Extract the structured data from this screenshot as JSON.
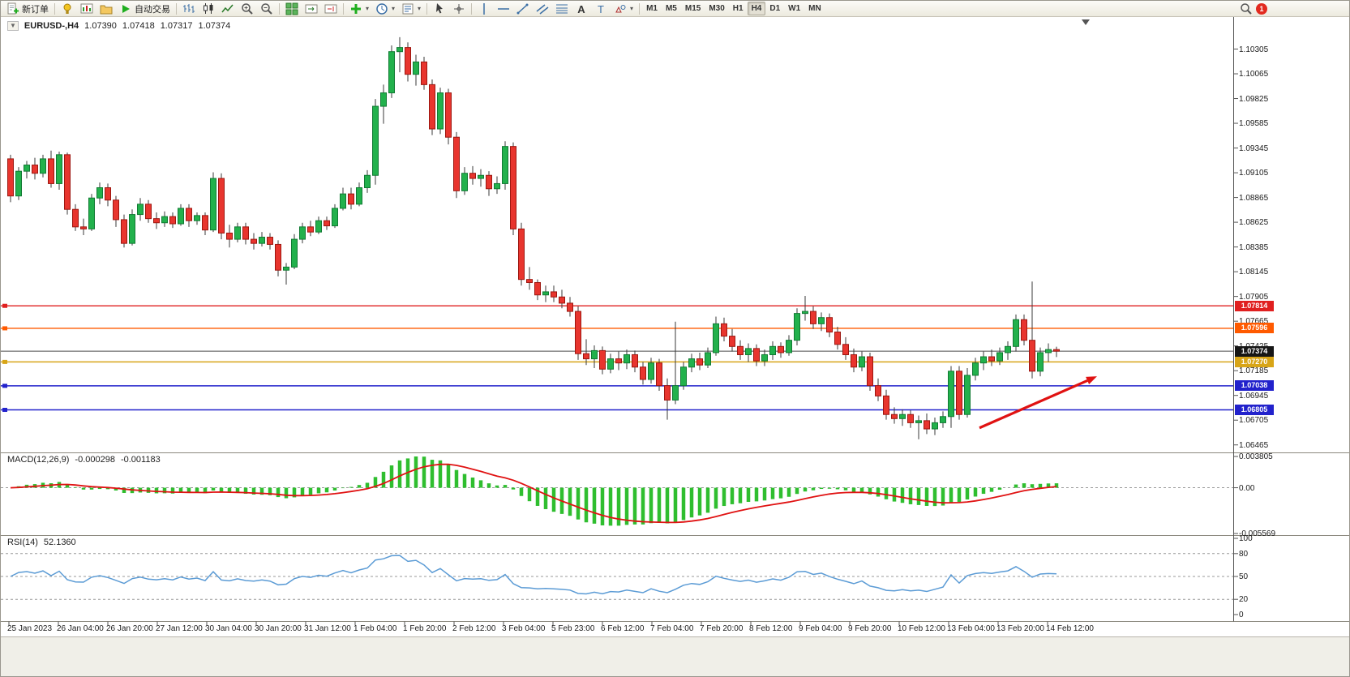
{
  "toolbar": {
    "new_order_label": "新订单",
    "autotrading_label": "自动交易",
    "left_icon_buttons": [
      "indicators",
      "new-chart",
      "profiles"
    ],
    "chart_type_buttons": [
      "bar-chart",
      "candle-chart",
      "line-chart"
    ],
    "zoom_buttons": [
      "zoom-in",
      "zoom-out"
    ],
    "window_buttons": [
      "tile-windows",
      "auto-scroll",
      "chart-shift"
    ],
    "insert_buttons": [
      "add-indicator",
      "periods",
      "templates"
    ],
    "cursor_buttons": [
      "cursor",
      "crosshair"
    ],
    "drawing_buttons": [
      "vline",
      "hline",
      "trendline",
      "channel",
      "fibonacci",
      "text",
      "label",
      "shapes"
    ],
    "timeframes": [
      "M1",
      "M5",
      "M15",
      "M30",
      "H1",
      "H4",
      "D1",
      "W1",
      "MN"
    ],
    "active_timeframe": "H4",
    "notification_count": "1"
  },
  "chart_header": {
    "symbol": "EURUSD-,H4",
    "open": "1.07390",
    "high": "1.07418",
    "low": "1.07317",
    "close": "1.07374"
  },
  "chart_data": {
    "type": "candlestick",
    "symbol": "EURUSD-",
    "period": "H4",
    "price_axis": {
      "max": 1.106,
      "min": 1.064,
      "labels": [
        "1.10305",
        "1.10065",
        "1.09825",
        "1.09585",
        "1.09345",
        "1.09105",
        "1.08865",
        "1.08625",
        "1.08385",
        "1.08145",
        "1.07905",
        "1.07665",
        "1.07425",
        "1.07185",
        "1.06945",
        "1.06705",
        "1.06465"
      ]
    },
    "time_axis": [
      "25 Jan 2023",
      "26 Jan 04:00",
      "26 Jan 20:00",
      "27 Jan 12:00",
      "30 Jan 04:00",
      "30 Jan 20:00",
      "31 Jan 12:00",
      "1 Feb 04:00",
      "1 Feb 20:00",
      "2 Feb 12:00",
      "3 Feb 04:00",
      "5 Feb 23:00",
      "6 Feb 12:00",
      "7 Feb 04:00",
      "7 Feb 20:00",
      "8 Feb 12:00",
      "9 Feb 04:00",
      "9 Feb 20:00",
      "10 Feb 12:00",
      "13 Feb 04:00",
      "13 Feb 20:00",
      "14 Feb 12:00"
    ],
    "colors": {
      "up": "#22b14c",
      "up_border": "#117a33",
      "down": "#e8352e",
      "down_border": "#9c1710",
      "wick": "#3a3a3a"
    },
    "levels": [
      {
        "price": 1.07814,
        "label": "1.07814",
        "color": "#e02020"
      },
      {
        "price": 1.07596,
        "label": "1.07596",
        "color": "#ff5a00"
      },
      {
        "price": 1.0727,
        "label": "1.07270",
        "color": "#d8a517"
      },
      {
        "price": 1.07038,
        "label": "1.07038",
        "color": "#2222cc"
      },
      {
        "price": 1.06805,
        "label": "1.06805",
        "color": "#2222cc"
      }
    ],
    "bid": {
      "price": 1.07374,
      "label": "1.07374",
      "tag_color": "#161616",
      "line_color": "#4a4a4a"
    },
    "annotations": [
      {
        "type": "arrow",
        "from": {
          "index": 119.5,
          "price": 1.0663
        },
        "to": {
          "index": 134,
          "price": 1.0713
        },
        "color": "#e01212"
      }
    ],
    "shift_marker_index": 132.6,
    "candles": [
      [
        1.0924,
        1.0928,
        1.0882,
        1.0888
      ],
      [
        1.0888,
        1.0916,
        1.0884,
        1.0912
      ],
      [
        1.0912,
        1.0922,
        1.0905,
        1.0918
      ],
      [
        1.0918,
        1.0925,
        1.0904,
        1.091
      ],
      [
        1.091,
        1.0928,
        1.0906,
        1.0924
      ],
      [
        1.0924,
        1.0932,
        1.0896,
        1.09
      ],
      [
        1.09,
        1.0931,
        1.0894,
        1.0928
      ],
      [
        1.0928,
        1.093,
        1.087,
        1.0875
      ],
      [
        1.0875,
        1.088,
        1.0854,
        1.0858
      ],
      [
        1.0858,
        1.0866,
        1.085,
        1.0856
      ],
      [
        1.0856,
        1.089,
        1.0854,
        1.0886
      ],
      [
        1.0886,
        1.0901,
        1.088,
        1.0896
      ],
      [
        1.0896,
        1.09,
        1.0878,
        1.0884
      ],
      [
        1.0884,
        1.0888,
        1.0858,
        1.0865
      ],
      [
        1.0865,
        1.087,
        1.0838,
        1.0842
      ],
      [
        1.0842,
        1.0875,
        1.084,
        1.087
      ],
      [
        1.087,
        1.0886,
        1.0864,
        1.088
      ],
      [
        1.088,
        1.0884,
        1.0862,
        1.0866
      ],
      [
        1.0866,
        1.0872,
        1.0856,
        1.0862
      ],
      [
        1.0862,
        1.0873,
        1.0858,
        1.0868
      ],
      [
        1.0868,
        1.0872,
        1.0857,
        1.0861
      ],
      [
        1.0861,
        1.088,
        1.0859,
        1.0876
      ],
      [
        1.0876,
        1.088,
        1.0858,
        1.0864
      ],
      [
        1.0864,
        1.0872,
        1.086,
        1.0869
      ],
      [
        1.0869,
        1.0872,
        1.085,
        1.0855
      ],
      [
        1.0855,
        1.0911,
        1.0853,
        1.0905
      ],
      [
        1.0905,
        1.091,
        1.0846,
        1.0852
      ],
      [
        1.0852,
        1.086,
        1.0838,
        1.0846
      ],
      [
        1.0846,
        1.0862,
        1.0843,
        1.0858
      ],
      [
        1.0858,
        1.0862,
        1.0841,
        1.0846
      ],
      [
        1.0846,
        1.0852,
        1.0836,
        1.0842
      ],
      [
        1.0842,
        1.0853,
        1.0839,
        1.0848
      ],
      [
        1.0848,
        1.0852,
        1.0836,
        1.0841
      ],
      [
        1.0841,
        1.0845,
        1.081,
        1.0816
      ],
      [
        1.0816,
        1.0823,
        1.0802,
        1.0819
      ],
      [
        1.0819,
        1.0851,
        1.0817,
        1.0846
      ],
      [
        1.0846,
        1.0862,
        1.0842,
        1.0858
      ],
      [
        1.0858,
        1.0864,
        1.0849,
        1.0853
      ],
      [
        1.0853,
        1.0868,
        1.0851,
        1.0864
      ],
      [
        1.0864,
        1.0868,
        1.0855,
        1.0859
      ],
      [
        1.0859,
        1.088,
        1.0857,
        1.0876
      ],
      [
        1.0876,
        1.0896,
        1.0874,
        1.089
      ],
      [
        1.089,
        1.0896,
        1.0875,
        1.088
      ],
      [
        1.088,
        1.0901,
        1.0878,
        1.0896
      ],
      [
        1.0896,
        1.0913,
        1.0891,
        1.0908
      ],
      [
        1.0908,
        1.0982,
        1.0899,
        1.0975
      ],
      [
        1.0975,
        1.0996,
        1.0958,
        1.0988
      ],
      [
        1.0988,
        1.1034,
        1.0983,
        1.1028
      ],
      [
        1.1028,
        1.1042,
        1.1008,
        1.1032
      ],
      [
        1.1032,
        1.1037,
        1.0999,
        1.1006
      ],
      [
        1.1006,
        1.1025,
        1.0995,
        1.1018
      ],
      [
        1.1018,
        1.1023,
        1.0991,
        1.0996
      ],
      [
        1.0996,
        1.1001,
        1.0947,
        1.0953
      ],
      [
        1.0953,
        1.0993,
        1.0948,
        1.0988
      ],
      [
        1.0988,
        1.0992,
        1.0938,
        1.0945
      ],
      [
        1.0945,
        1.095,
        1.0886,
        1.0893
      ],
      [
        1.0893,
        1.0916,
        1.0889,
        1.091
      ],
      [
        1.091,
        1.0917,
        1.0899,
        1.0905
      ],
      [
        1.0905,
        1.0914,
        1.0897,
        1.0908
      ],
      [
        1.0908,
        1.0912,
        1.0888,
        1.0895
      ],
      [
        1.0895,
        1.0907,
        1.089,
        1.09
      ],
      [
        1.09,
        1.0941,
        1.0894,
        1.0936
      ],
      [
        1.0936,
        1.094,
        1.085,
        1.0856
      ],
      [
        1.0856,
        1.0862,
        1.0801,
        1.0807
      ],
      [
        1.0807,
        1.0819,
        1.0797,
        1.0804
      ],
      [
        1.0804,
        1.0807,
        1.0787,
        1.0792
      ],
      [
        1.0792,
        1.0801,
        1.0785,
        1.0795
      ],
      [
        1.0795,
        1.0801,
        1.0785,
        1.079
      ],
      [
        1.079,
        1.0797,
        1.0779,
        1.0784
      ],
      [
        1.0784,
        1.079,
        1.0771,
        1.0776
      ],
      [
        1.0776,
        1.0781,
        1.0729,
        1.0735
      ],
      [
        1.0735,
        1.0749,
        1.0724,
        1.073
      ],
      [
        1.073,
        1.0743,
        1.0721,
        1.0738
      ],
      [
        1.0738,
        1.0742,
        1.0715,
        1.072
      ],
      [
        1.072,
        1.0735,
        1.0716,
        1.073
      ],
      [
        1.073,
        1.0737,
        1.0719,
        1.0726
      ],
      [
        1.0726,
        1.0739,
        1.072,
        1.0734
      ],
      [
        1.0734,
        1.0738,
        1.0717,
        1.0722
      ],
      [
        1.0722,
        1.0727,
        1.0705,
        1.071
      ],
      [
        1.071,
        1.0731,
        1.0706,
        1.0726
      ],
      [
        1.0726,
        1.073,
        1.0699,
        1.0704
      ],
      [
        1.0704,
        1.0711,
        1.0671,
        1.069
      ],
      [
        1.069,
        1.0766,
        1.0686,
        1.0704
      ],
      [
        1.0704,
        1.0727,
        1.07,
        1.0722
      ],
      [
        1.0722,
        1.0735,
        1.0717,
        1.073
      ],
      [
        1.073,
        1.0736,
        1.0719,
        1.0724
      ],
      [
        1.0724,
        1.0741,
        1.0721,
        1.0736
      ],
      [
        1.0736,
        1.0771,
        1.0733,
        1.0764
      ],
      [
        1.0764,
        1.077,
        1.0747,
        1.0752
      ],
      [
        1.0752,
        1.0759,
        1.0737,
        1.0742
      ],
      [
        1.0742,
        1.0748,
        1.0729,
        1.0734
      ],
      [
        1.0734,
        1.0745,
        1.0727,
        1.074
      ],
      [
        1.074,
        1.0744,
        1.0723,
        1.0728
      ],
      [
        1.0728,
        1.0739,
        1.0723,
        1.0734
      ],
      [
        1.0734,
        1.0747,
        1.0729,
        1.0742
      ],
      [
        1.0742,
        1.0746,
        1.0731,
        1.0736
      ],
      [
        1.0736,
        1.0753,
        1.0733,
        1.0748
      ],
      [
        1.0748,
        1.0779,
        1.0743,
        1.0774
      ],
      [
        1.0774,
        1.0791,
        1.0767,
        1.0776
      ],
      [
        1.0776,
        1.0781,
        1.0759,
        1.0764
      ],
      [
        1.0764,
        1.0775,
        1.0757,
        1.077
      ],
      [
        1.077,
        1.0774,
        1.0751,
        1.0756
      ],
      [
        1.0756,
        1.0761,
        1.0739,
        1.0744
      ],
      [
        1.0744,
        1.0751,
        1.0729,
        1.0734
      ],
      [
        1.0734,
        1.074,
        1.0717,
        1.0722
      ],
      [
        1.0722,
        1.0737,
        1.0718,
        1.0732
      ],
      [
        1.0732,
        1.0736,
        1.0699,
        1.0704
      ],
      [
        1.0704,
        1.0711,
        1.0689,
        1.0694
      ],
      [
        1.0694,
        1.07,
        1.0671,
        1.0676
      ],
      [
        1.0676,
        1.0683,
        1.0667,
        1.0672
      ],
      [
        1.0672,
        1.0681,
        1.0665,
        1.0676
      ],
      [
        1.0676,
        1.068,
        1.0663,
        1.0668
      ],
      [
        1.0668,
        1.0675,
        1.0652,
        1.067
      ],
      [
        1.067,
        1.0677,
        1.0657,
        1.0662
      ],
      [
        1.0662,
        1.0673,
        1.0656,
        1.0668
      ],
      [
        1.0668,
        1.0679,
        1.0663,
        1.0674
      ],
      [
        1.0674,
        1.0723,
        1.0663,
        1.0718
      ],
      [
        1.0718,
        1.0723,
        1.0671,
        1.0676
      ],
      [
        1.0676,
        1.0721,
        1.0673,
        1.0714
      ],
      [
        1.0714,
        1.0731,
        1.0709,
        1.0726
      ],
      [
        1.0726,
        1.0737,
        1.0719,
        1.0732
      ],
      [
        1.0732,
        1.0739,
        1.0723,
        1.0728
      ],
      [
        1.0728,
        1.0741,
        1.0724,
        1.0736
      ],
      [
        1.0736,
        1.0747,
        1.0729,
        1.0742
      ],
      [
        1.0742,
        1.0773,
        1.0737,
        1.0768
      ],
      [
        1.0768,
        1.0773,
        1.0743,
        1.0748
      ],
      [
        1.0748,
        1.0805,
        1.0711,
        1.0718
      ],
      [
        1.0718,
        1.0741,
        1.0713,
        1.0736
      ],
      [
        1.0736,
        1.0745,
        1.0727,
        1.0739
      ],
      [
        1.0739,
        1.07418,
        1.07317,
        1.07374
      ]
    ]
  },
  "indicators": {
    "macd": {
      "title": "MACD(12,26,9)",
      "values": [
        "-0.000298",
        "-0.001183"
      ],
      "params": [
        12,
        26,
        9
      ],
      "axis_labels": [
        "0.003805",
        "0.00",
        "-0.005569"
      ],
      "axis_max": 0.003805,
      "axis_min": -0.005569,
      "histogram_color": "#2fbe2f",
      "signal_color": "#e01212"
    },
    "rsi": {
      "title": "RSI(14)",
      "value": "52.1360",
      "params": [
        14
      ],
      "axis_labels": [
        "100",
        "80",
        "50",
        "20",
        "0"
      ],
      "levels": [
        80,
        50,
        20
      ],
      "range": [
        0,
        100
      ],
      "line_color": "#5b9bd5"
    }
  }
}
